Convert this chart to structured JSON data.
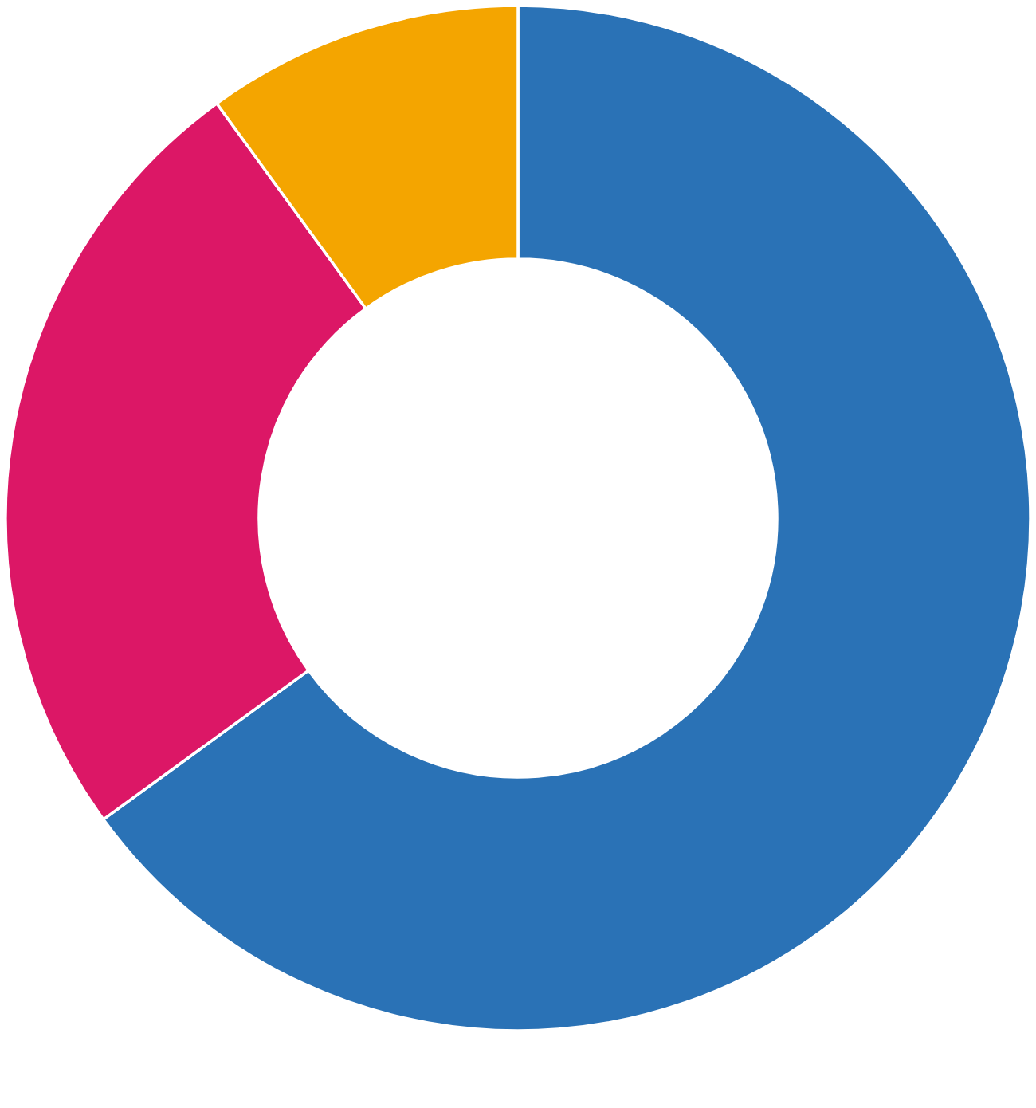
{
  "chart_data": {
    "type": "donut",
    "categories": [
      null,
      null,
      null
    ],
    "values": [
      65,
      25,
      10
    ],
    "colors": [
      "#2a72b6",
      "#dc1766",
      "#f4a500"
    ]
  }
}
